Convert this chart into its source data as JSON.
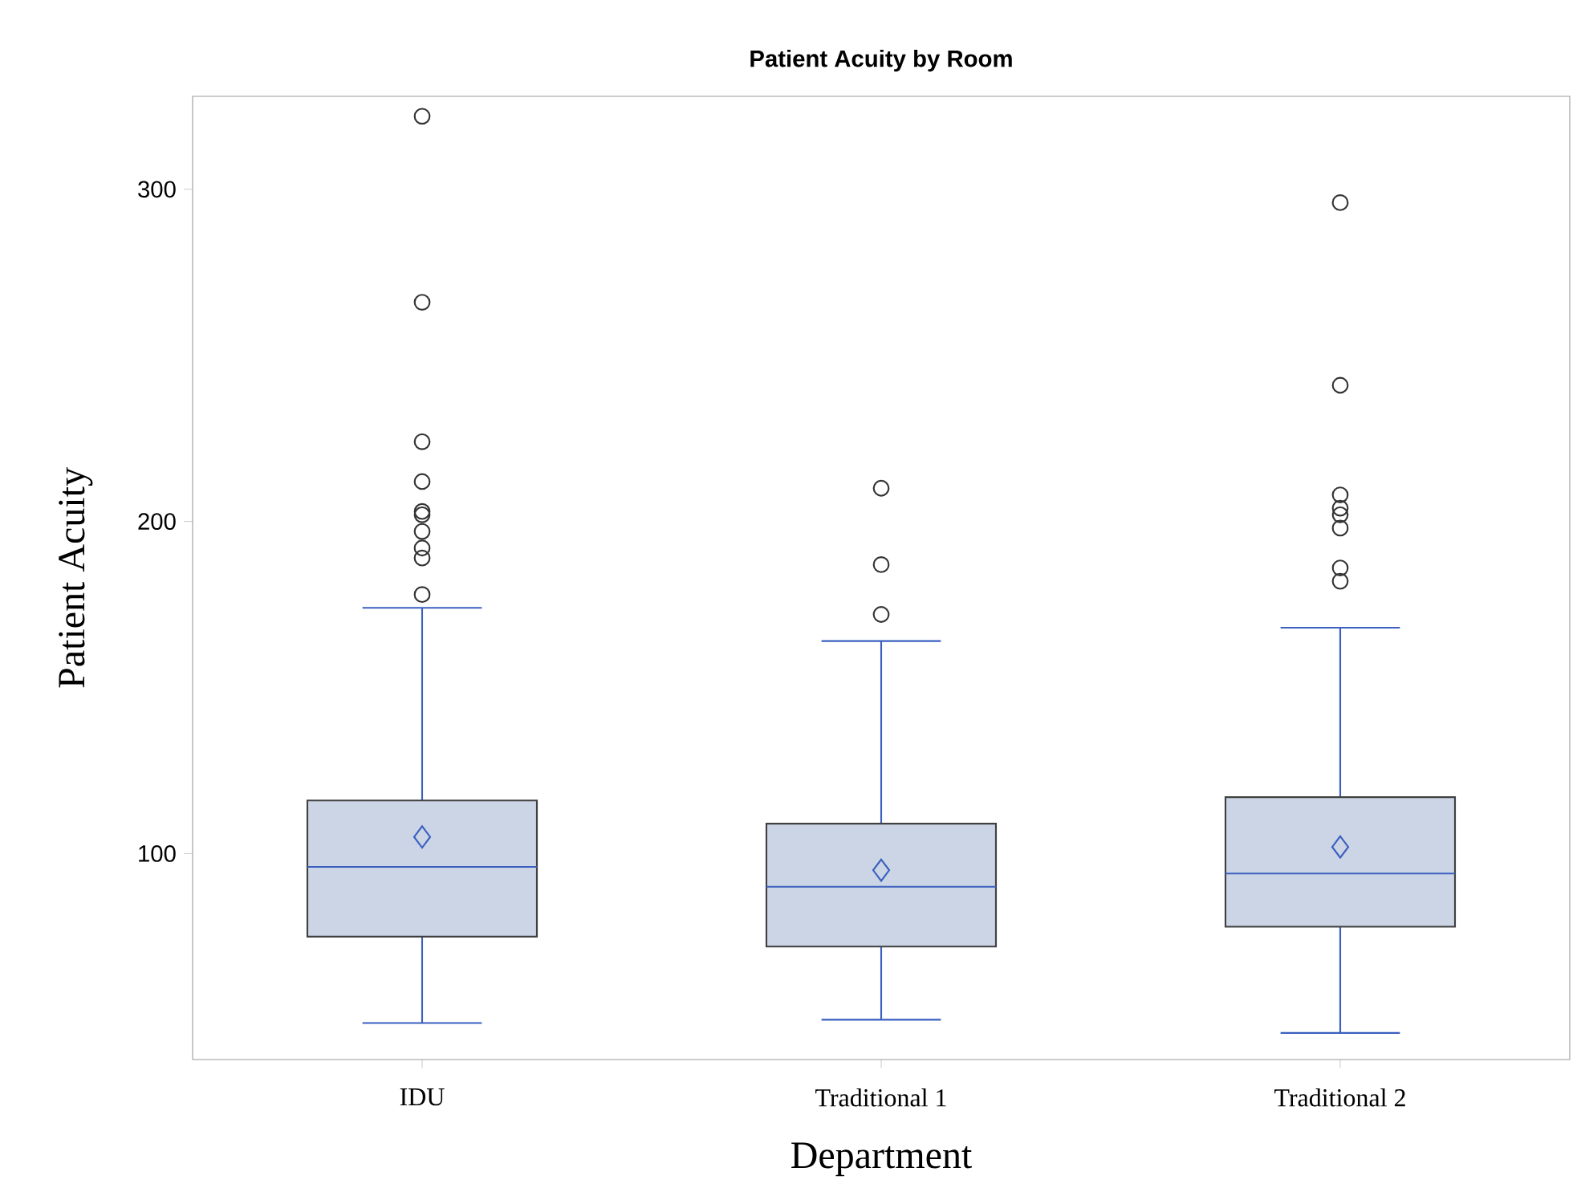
{
  "chart_data": {
    "type": "box",
    "title": "Patient Acuity by Room",
    "xlabel": "Department",
    "ylabel": "Patient Acuity",
    "categories": [
      "IDU",
      "Traditional 1",
      "Traditional 2"
    ],
    "series": [
      {
        "color": "#cbd5e5",
        "boxes": [
          {
            "low": 49,
            "q1": 75,
            "median": 96,
            "q3": 116,
            "high": 174,
            "mean": 105,
            "outliers": [
              322,
              266,
              224,
              212,
              203,
              202,
              197,
              192,
              189,
              178
            ]
          },
          {
            "low": 50,
            "q1": 72,
            "median": 90,
            "q3": 109,
            "high": 164,
            "mean": 95,
            "outliers": [
              210,
              187,
              172
            ]
          },
          {
            "low": 46,
            "q1": 78,
            "median": 94,
            "q3": 117,
            "high": 168,
            "mean": 102,
            "outliers": [
              296,
              241,
              208,
              204,
              202,
              198,
              186,
              182
            ]
          }
        ]
      }
    ],
    "ylim": [
      38,
      328
    ],
    "yticks": [
      100,
      200,
      300
    ]
  }
}
